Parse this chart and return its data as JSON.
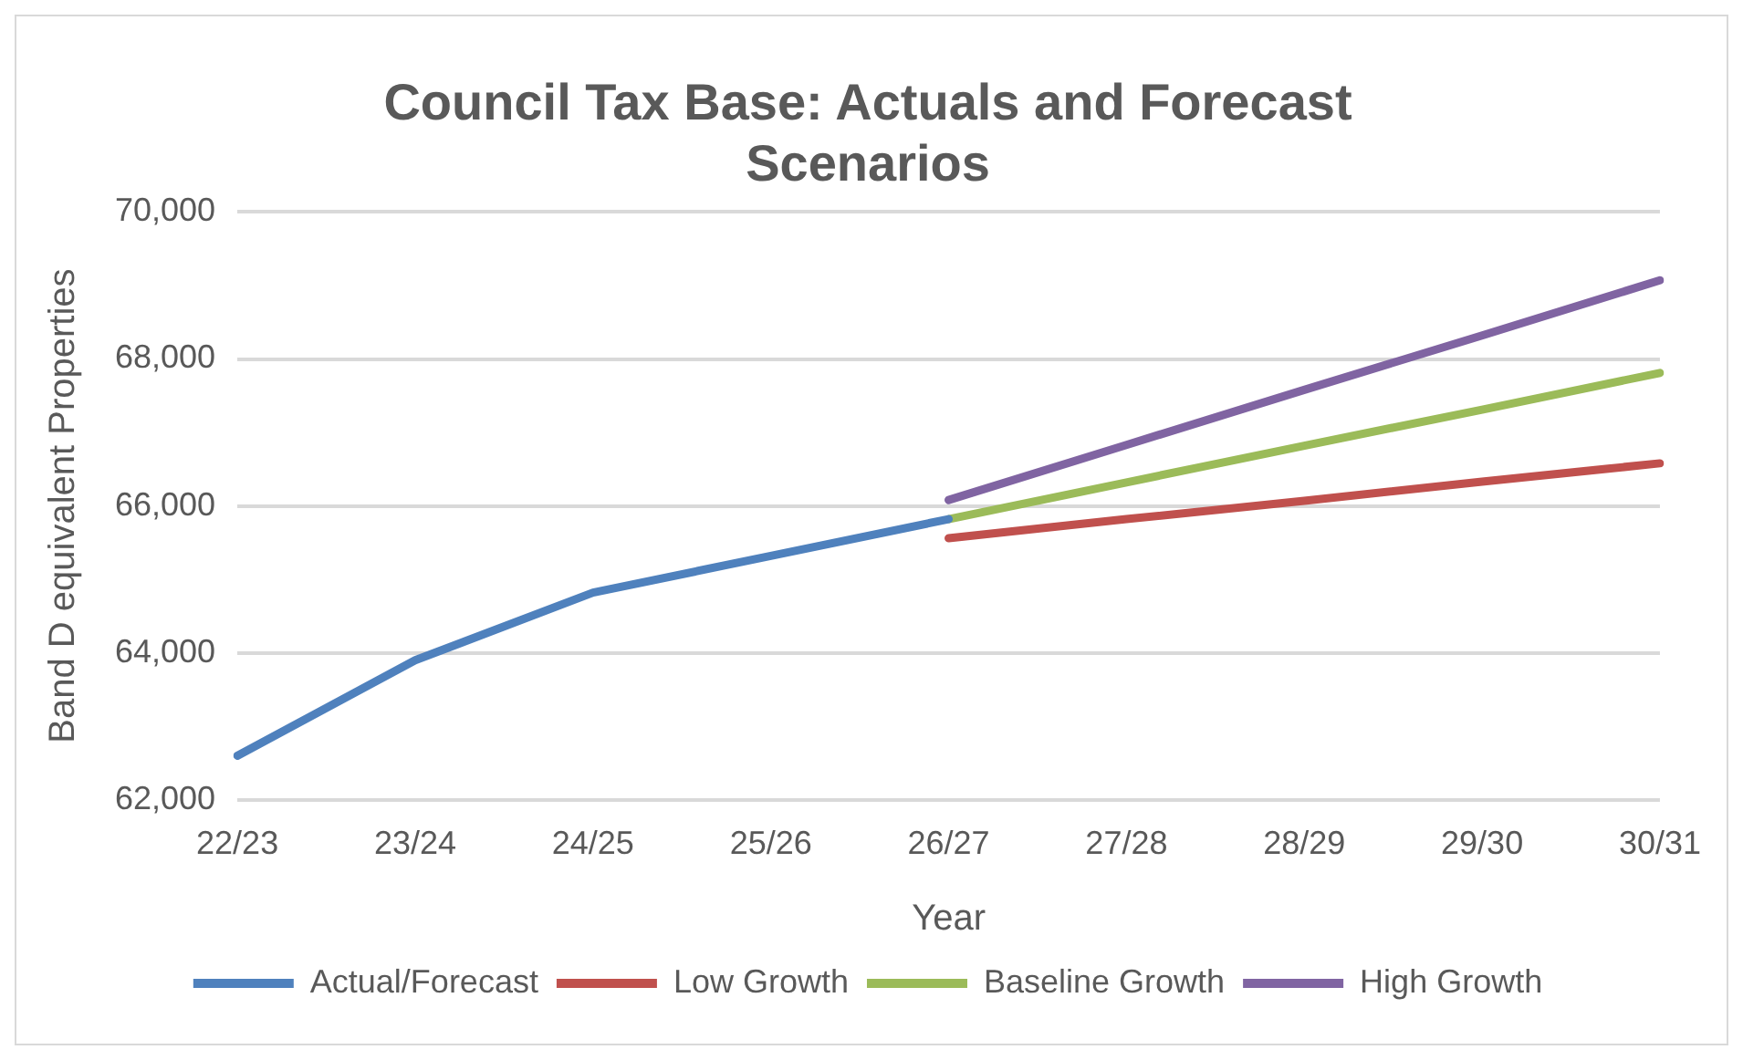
{
  "chart_data": {
    "type": "line",
    "title": "Council Tax Base: Actuals and Forecast Scenarios",
    "xlabel": "Year",
    "ylabel": "Band D equivalent Properties",
    "categories": [
      "22/23",
      "23/24",
      "24/25",
      "25/26",
      "26/27",
      "27/28",
      "28/29",
      "29/30",
      "30/31"
    ],
    "series": [
      {
        "name": "Actual/Forecast",
        "color": "#4f81bd",
        "values": [
          62600,
          63900,
          64820,
          65320,
          65820,
          null,
          null,
          null,
          null
        ]
      },
      {
        "name": "Low Growth",
        "color": "#c0504d",
        "values": [
          null,
          null,
          null,
          null,
          65560,
          65820,
          66070,
          66330,
          66580
        ]
      },
      {
        "name": "Baseline Growth",
        "color": "#9bbb59",
        "values": [
          null,
          null,
          null,
          null,
          65820,
          66320,
          66820,
          67310,
          67810
        ]
      },
      {
        "name": "High Growth",
        "color": "#8064a2",
        "values": [
          null,
          null,
          null,
          null,
          66080,
          66830,
          67580,
          68320,
          69070
        ]
      }
    ],
    "ylim": [
      62000,
      70000
    ],
    "yticks": [
      {
        "value": 62000,
        "label": "62,000"
      },
      {
        "value": 64000,
        "label": "64,000"
      },
      {
        "value": 66000,
        "label": "66,000"
      },
      {
        "value": 68000,
        "label": "68,000"
      },
      {
        "value": 70000,
        "label": "70,000"
      }
    ],
    "grid": "y",
    "legend": "bottom",
    "marker": "none",
    "line_style": "solid"
  }
}
